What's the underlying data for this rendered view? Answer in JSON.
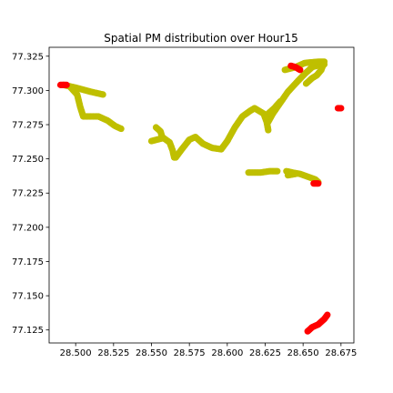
{
  "chart_data": {
    "type": "scatter",
    "title": "Spatial PM distribution over Hour15",
    "xlabel": "",
    "ylabel": "",
    "xlim": [
      28.4825,
      28.6835
    ],
    "ylim": [
      77.1155,
      77.3315
    ],
    "x_ticks": [
      28.5,
      28.525,
      28.55,
      28.575,
      28.6,
      28.625,
      28.65,
      28.675
    ],
    "x_tick_labels": [
      "28.500",
      "28.525",
      "28.550",
      "28.575",
      "28.600",
      "28.625",
      "28.650",
      "28.675"
    ],
    "y_ticks": [
      77.125,
      77.15,
      77.175,
      77.2,
      77.225,
      77.25,
      77.275,
      77.3,
      77.325
    ],
    "y_tick_labels": [
      "77.125",
      "77.150",
      "77.175",
      "77.200",
      "77.225",
      "77.250",
      "77.275",
      "77.300",
      "77.325"
    ],
    "grid": false,
    "legend": "none",
    "series": [
      {
        "color": "#bfbf00",
        "paths": [
          [
            [
              28.492,
              77.304
            ],
            [
              28.5,
              77.302
            ],
            [
              28.51,
              77.299
            ],
            [
              28.518,
              77.297
            ]
          ],
          [
            [
              28.496,
              77.303
            ],
            [
              28.501,
              77.297
            ],
            [
              28.503,
              77.288
            ],
            [
              28.505,
              77.281
            ],
            [
              28.509,
              77.281
            ],
            [
              28.515,
              77.281
            ],
            [
              28.521,
              77.278
            ],
            [
              28.526,
              77.274
            ],
            [
              28.53,
              77.272
            ]
          ],
          [
            [
              28.553,
              77.273
            ],
            [
              28.556,
              77.27
            ],
            [
              28.557,
              77.266
            ],
            [
              28.562,
              77.262
            ],
            [
              28.564,
              77.256
            ],
            [
              28.565,
              77.251
            ]
          ],
          [
            [
              28.55,
              77.263
            ],
            [
              28.557,
              77.265
            ]
          ],
          [
            [
              28.566,
              77.251
            ],
            [
              28.57,
              77.257
            ],
            [
              28.575,
              77.264
            ],
            [
              28.579,
              77.266
            ],
            [
              28.584,
              77.261
            ],
            [
              28.59,
              77.258
            ],
            [
              28.596,
              77.257
            ],
            [
              28.6,
              77.263
            ],
            [
              28.605,
              77.273
            ],
            [
              28.61,
              77.281
            ],
            [
              28.615,
              77.285
            ],
            [
              28.618,
              77.287
            ],
            [
              28.624,
              77.283
            ],
            [
              28.626,
              77.277
            ],
            [
              28.627,
              77.271
            ]
          ],
          [
            [
              28.627,
              77.277
            ],
            [
              28.63,
              77.283
            ],
            [
              28.635,
              77.291
            ],
            [
              28.64,
              77.299
            ],
            [
              28.645,
              77.305
            ],
            [
              28.651,
              77.312
            ],
            [
              28.656,
              77.317
            ],
            [
              28.662,
              77.319
            ],
            [
              28.664,
              77.319
            ]
          ],
          [
            [
              28.626,
              77.282
            ],
            [
              28.631,
              77.287
            ],
            [
              28.635,
              77.292
            ]
          ],
          [
            [
              28.638,
              77.315
            ],
            [
              28.645,
              77.317
            ],
            [
              28.651,
              77.32
            ],
            [
              28.66,
              77.321
            ],
            [
              28.664,
              77.321
            ]
          ],
          [
            [
              28.652,
              77.305
            ],
            [
              28.656,
              77.309
            ],
            [
              28.659,
              77.311
            ],
            [
              28.662,
              77.315
            ],
            [
              28.663,
              77.318
            ]
          ],
          [
            [
              28.614,
              77.24
            ],
            [
              28.622,
              77.24
            ],
            [
              28.628,
              77.241
            ],
            [
              28.633,
              77.241
            ]
          ],
          [
            [
              28.639,
              77.241
            ],
            [
              28.643,
              77.24
            ],
            [
              28.648,
              77.239
            ],
            [
              28.653,
              77.237
            ],
            [
              28.658,
              77.235
            ],
            [
              28.66,
              77.233
            ]
          ],
          [
            [
              28.64,
              77.238
            ],
            [
              28.645,
              77.239
            ]
          ]
        ]
      },
      {
        "color": "#ff0000",
        "paths": [
          [
            [
              28.49,
              77.304
            ],
            [
              28.494,
              77.304
            ]
          ],
          [
            [
              28.642,
              77.318
            ],
            [
              28.645,
              77.317
            ],
            [
              28.648,
              77.315
            ]
          ],
          [
            [
              28.673,
              77.287
            ],
            [
              28.675,
              77.287
            ]
          ],
          [
            [
              28.657,
              77.232
            ],
            [
              28.66,
              77.232
            ]
          ],
          [
            [
              28.653,
              77.124
            ],
            [
              28.656,
              77.127
            ],
            [
              28.66,
              77.129
            ],
            [
              28.664,
              77.133
            ],
            [
              28.666,
              77.136
            ]
          ]
        ]
      }
    ]
  }
}
